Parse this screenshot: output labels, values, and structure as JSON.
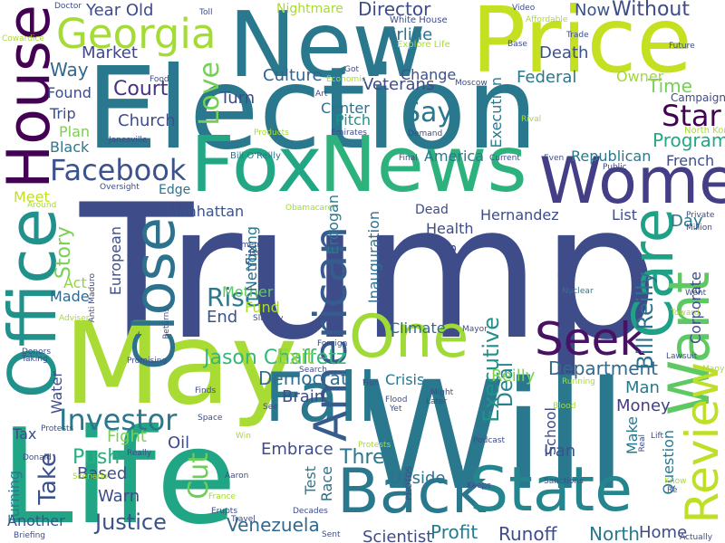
{
  "words": [
    {
      "text": "Trump",
      "color": "#3e4c8a",
      "rot": 0
    },
    {
      "text": "Election",
      "color": "#2a788e",
      "rot": 0
    },
    {
      "text": "Will",
      "color": "#2a788e",
      "rot": 0
    },
    {
      "text": "May",
      "color": "#a8db34",
      "rot": 0
    },
    {
      "text": "Life",
      "color": "#21a685",
      "rot": 0
    },
    {
      "text": "New",
      "color": "#2a788e",
      "rot": 0
    },
    {
      "text": "Price",
      "color": "#c4e021",
      "rot": 0
    },
    {
      "text": "Fox",
      "color": "#22a785",
      "rot": 0
    },
    {
      "text": "News",
      "color": "#2db27d",
      "rot": 0
    },
    {
      "text": "Women",
      "color": "#433e85",
      "rot": 0
    },
    {
      "text": "Back",
      "color": "#2a788e",
      "rot": 0
    },
    {
      "text": "State",
      "color": "#25858e",
      "rot": 0
    },
    {
      "text": "Fall",
      "color": "#2a788e",
      "rot": 0
    },
    {
      "text": "One",
      "color": "#a0da39",
      "rot": 0
    },
    {
      "text": "Seek",
      "color": "#471164",
      "rot": 0
    },
    {
      "text": "Office",
      "color": "#21918c",
      "rot": -90
    },
    {
      "text": "House",
      "color": "#440154",
      "rot": -90
    },
    {
      "text": "Close",
      "color": "#2c728e",
      "rot": -90
    },
    {
      "text": "Care",
      "color": "#1fa187",
      "rot": -90
    },
    {
      "text": "Want",
      "color": "#5ec962",
      "rot": -90
    },
    {
      "text": "American",
      "color": "#365c8d",
      "rot": -90
    },
    {
      "text": "Review",
      "color": "#bddf26",
      "rot": -90
    },
    {
      "text": "Georgia",
      "color": "#a5db36",
      "rot": 0
    },
    {
      "text": "Facebook",
      "color": "#3b528b",
      "rot": 0
    },
    {
      "text": "Investor",
      "color": "#2a788e",
      "rot": 0
    },
    {
      "text": "Star",
      "color": "#440154",
      "rot": 0
    },
    {
      "text": "Say",
      "color": "#2a788e",
      "rot": 0
    },
    {
      "text": "Love",
      "color": "#73d056",
      "rot": -90
    },
    {
      "text": "Rise",
      "color": "#2a788e",
      "rot": 0
    },
    {
      "text": "Jason Chaffetz",
      "color": "#35b779",
      "rot": 0
    },
    {
      "text": "Justice",
      "color": "#3b528b",
      "rot": 0
    },
    {
      "text": "Venezuela",
      "color": "#31688e",
      "rot": 0
    },
    {
      "text": "Deal",
      "color": "#25838e",
      "rot": -90
    },
    {
      "text": "Director",
      "color": "#3e4c8a",
      "rot": 0
    },
    {
      "text": "Airline",
      "color": "#2c728e",
      "rot": 0
    },
    {
      "text": "Court",
      "color": "#46327e",
      "rot": 0
    },
    {
      "text": "Church",
      "color": "#3e4c8a",
      "rot": 0
    },
    {
      "text": "Program",
      "color": "#22a884",
      "rot": 0
    },
    {
      "text": "Department",
      "color": "#31688e",
      "rot": 0
    },
    {
      "text": "Exit",
      "color": "#8fd744",
      "rot": 0
    },
    {
      "text": "Democrat",
      "color": "#2e6e8e",
      "rot": 0
    },
    {
      "text": "Three",
      "color": "#2a788e",
      "rot": 0
    },
    {
      "text": "Push",
      "color": "#29af7f",
      "rot": 0
    },
    {
      "text": "Money",
      "color": "#433e85",
      "rot": 0
    },
    {
      "text": "Take",
      "color": "#3b528b",
      "rot": -90
    },
    {
      "text": "Cut",
      "color": "#6ece58",
      "rot": -90
    },
    {
      "text": "Upside",
      "color": "#2c728e",
      "rot": 0
    },
    {
      "text": "Bill Reilly",
      "color": "#2c728e",
      "rot": -90
    },
    {
      "text": "Executive",
      "color": "#21918c",
      "rot": -90
    },
    {
      "text": "Culture",
      "color": "#33628d",
      "rot": 0
    },
    {
      "text": "Without",
      "color": "#3e4c8a",
      "rot": 0
    },
    {
      "text": "Year Old",
      "color": "#3e4c8a",
      "rot": 0
    },
    {
      "text": "Market",
      "color": "#404688",
      "rot": 0
    },
    {
      "text": "Way",
      "color": "#31688e",
      "rot": 0
    },
    {
      "text": "Death",
      "color": "#3b528b",
      "rot": 0
    },
    {
      "text": "Time",
      "color": "#75d054",
      "rot": 0
    },
    {
      "text": "Federal",
      "color": "#2a788e",
      "rot": 0
    },
    {
      "text": "Veterans",
      "color": "#3e4c8a",
      "rot": 0
    },
    {
      "text": "Change",
      "color": "#3b528b",
      "rot": 0
    },
    {
      "text": "Center",
      "color": "#2c728e",
      "rot": 0
    },
    {
      "text": "Pitch",
      "color": "#20928c",
      "rot": 0
    },
    {
      "text": "Now",
      "color": "#3b528b",
      "rot": 0
    },
    {
      "text": "Turn",
      "color": "#3e4c8a",
      "rot": 0
    },
    {
      "text": "Found",
      "color": "#3e4c8a",
      "rot": 0
    },
    {
      "text": "Trip",
      "color": "#3e4c8a",
      "rot": 0
    },
    {
      "text": "Plan",
      "color": "#7ad151",
      "rot": 0
    },
    {
      "text": "Black",
      "color": "#2a788e",
      "rot": 0
    },
    {
      "text": "Story",
      "color": "#7ad151",
      "rot": -90
    },
    {
      "text": "Act",
      "color": "#8fd744",
      "rot": 0
    },
    {
      "text": "Made",
      "color": "#31688e",
      "rot": 0
    },
    {
      "text": "Mother",
      "color": "#5ec962",
      "rot": 0
    },
    {
      "text": "Fund",
      "color": "#a8db34",
      "rot": 0
    },
    {
      "text": "End",
      "color": "#3b528b",
      "rot": 0
    },
    {
      "text": "European",
      "color": "#3e4c8a",
      "rot": -90
    },
    {
      "text": "Manhattan",
      "color": "#3b528b",
      "rot": 0
    },
    {
      "text": "Young",
      "color": "#2a788e",
      "rot": -90
    },
    {
      "text": "Netflix",
      "color": "#31688e",
      "rot": -90
    },
    {
      "text": "Edge",
      "color": "#2c728e",
      "rot": 0
    },
    {
      "text": "Republican",
      "color": "#2a788e",
      "rot": 0
    },
    {
      "text": "French",
      "color": "#3e4c8a",
      "rot": 0
    },
    {
      "text": "List",
      "color": "#3e4c8a",
      "rot": 0
    },
    {
      "text": "Day",
      "color": "#2a788e",
      "rot": 0
    },
    {
      "text": "Help",
      "color": "#3e4c8a",
      "rot": -90
    },
    {
      "text": "Hernandez",
      "color": "#3e4c8a",
      "rot": 0
    },
    {
      "text": "Health",
      "color": "#3e4c8a",
      "rot": 0
    },
    {
      "text": "America",
      "color": "#2a788e",
      "rot": 0
    },
    {
      "text": "Erdogan",
      "color": "#2a788e",
      "rot": -90
    },
    {
      "text": "Inauguration",
      "color": "#2c728e",
      "rot": -90
    },
    {
      "text": "Earnings",
      "color": "#3e4c8a",
      "rot": -90
    },
    {
      "text": "Climate",
      "color": "#31688e",
      "rot": 0
    },
    {
      "text": "Crisis",
      "color": "#2a788e",
      "rot": 0
    },
    {
      "text": "Reilly",
      "color": "#7ad151",
      "rot": 0
    },
    {
      "text": "Man",
      "color": "#2a788e",
      "rot": 0
    },
    {
      "text": "School",
      "color": "#3e4c8a",
      "rot": -90
    },
    {
      "text": "Make",
      "color": "#2a788e",
      "rot": -90
    },
    {
      "text": "Question",
      "color": "#2a788e",
      "rot": -90
    },
    {
      "text": "Corporate",
      "color": "#3e4c8a",
      "rot": -90
    },
    {
      "text": "Iran",
      "color": "#3b528b",
      "rot": 0
    },
    {
      "text": "Test",
      "color": "#2a788e",
      "rot": -90
    },
    {
      "text": "Race",
      "color": "#2c728e",
      "rot": -90
    },
    {
      "text": "Brain",
      "color": "#3e4c8a",
      "rot": 0
    },
    {
      "text": "Embrace",
      "color": "#3e4c8a",
      "rot": 0
    },
    {
      "text": "Oil",
      "color": "#3e4c8a",
      "rot": 0
    },
    {
      "text": "Fight",
      "color": "#7ad151",
      "rot": 0
    },
    {
      "text": "Tax",
      "color": "#3e4c8a",
      "rot": 0
    },
    {
      "text": "Based",
      "color": "#3e4c8a",
      "rot": 0
    },
    {
      "text": "Warn",
      "color": "#3e4c8a",
      "rot": 0
    },
    {
      "text": "Turning",
      "color": "#2a788e",
      "rot": -90
    },
    {
      "text": "Another",
      "color": "#3b528b",
      "rot": 0
    },
    {
      "text": "Runoff",
      "color": "#3e4c8a",
      "rot": 0
    },
    {
      "text": "Profit",
      "color": "#2a788e",
      "rot": 0
    },
    {
      "text": "Scientist",
      "color": "#3e4c8a",
      "rot": 0
    },
    {
      "text": "North",
      "color": "#2a788e",
      "rot": 0
    },
    {
      "text": "Home",
      "color": "#3e4c8a",
      "rot": 0
    },
    {
      "text": "Owner",
      "color": "#a0da39",
      "rot": 0
    },
    {
      "text": "Campaign",
      "color": "#3e4c8a",
      "rot": 0
    },
    {
      "text": "Execution",
      "color": "#2a788e",
      "rot": -90
    },
    {
      "text": "Meet",
      "color": "#c4e021",
      "rot": 0
    },
    {
      "text": "Dead",
      "color": "#3e4c8a",
      "rot": 0
    },
    {
      "text": "Water",
      "color": "#3e4c8a",
      "rot": -90
    },
    {
      "text": "Nightmare",
      "color": "#a8db34",
      "rot": 0
    },
    {
      "text": "White House",
      "color": "#3e4c8a",
      "rot": 0
    },
    {
      "text": "Explore Life",
      "color": "#a8db34",
      "rot": 0
    },
    {
      "text": "Oversight",
      "color": "#3e4c8a",
      "rot": 0
    },
    {
      "text": "Anti Maduro",
      "color": "#3e4c8a",
      "rot": -90
    },
    {
      "text": "Harassment",
      "color": "#3e4c8a",
      "rot": 0
    },
    {
      "text": "Obamacare",
      "color": "#a0da39",
      "rot": 0
    },
    {
      "text": "Bill O'Reilly",
      "color": "#2a788e",
      "rot": 0
    },
    {
      "text": "Janesville",
      "color": "#3e4c8a",
      "rot": 0
    },
    {
      "text": "Products",
      "color": "#a8db34",
      "rot": 0
    },
    {
      "text": "Emirates",
      "color": "#3e4c8a",
      "rot": 0
    },
    {
      "text": "North Korea",
      "color": "#a8db34",
      "rot": 0
    },
    {
      "text": "Promising",
      "color": "#3e4c8a",
      "rot": 0
    },
    {
      "text": "Adviser",
      "color": "#a8db34",
      "rot": 0
    },
    {
      "text": "Cowardice",
      "color": "#a8db34",
      "rot": 0
    },
    {
      "text": "Doctor",
      "color": "#3e4c8a",
      "rot": 0
    },
    {
      "text": "Toll",
      "color": "#3e4c8a",
      "rot": 0
    },
    {
      "text": "Video",
      "color": "#3e4c8a",
      "rot": 0
    },
    {
      "text": "Affordable",
      "color": "#a8db34",
      "rot": 0
    },
    {
      "text": "Trade",
      "color": "#3e4c8a",
      "rot": 0
    },
    {
      "text": "Base",
      "color": "#3e4c8a",
      "rot": 0
    },
    {
      "text": "Future",
      "color": "#3e4c8a",
      "rot": 0
    },
    {
      "text": "Food",
      "color": "#3e4c8a",
      "rot": 0
    },
    {
      "text": "Art",
      "color": "#3e4c8a",
      "rot": 0
    },
    {
      "text": "Got",
      "color": "#3e4c8a",
      "rot": 0
    },
    {
      "text": "Economic",
      "color": "#a8db34",
      "rot": 0
    },
    {
      "text": "Moscow",
      "color": "#3e4c8a",
      "rot": 0
    },
    {
      "text": "Rival",
      "color": "#a8db34",
      "rot": 0
    },
    {
      "text": "Demand",
      "color": "#3e4c8a",
      "rot": 0
    },
    {
      "text": "Final",
      "color": "#3e4c8a",
      "rot": 0
    },
    {
      "text": "Current",
      "color": "#3e4c8a",
      "rot": 0
    },
    {
      "text": "Even",
      "color": "#3e4c8a",
      "rot": 0
    },
    {
      "text": "Public",
      "color": "#3e4c8a",
      "rot": 0
    },
    {
      "text": "Around",
      "color": "#a8db34",
      "rot": 0
    },
    {
      "text": "Private",
      "color": "#3e4c8a",
      "rot": 0
    },
    {
      "text": "Million",
      "color": "#3e4c8a",
      "rot": 0
    },
    {
      "text": "Went",
      "color": "#3e4c8a",
      "rot": 0
    },
    {
      "text": "Nuclear",
      "color": "#2a788e",
      "rot": 0
    },
    {
      "text": "Issue",
      "color": "#3e4c8a",
      "rot": 0
    },
    {
      "text": "Returns",
      "color": "#3e4c8a",
      "rot": -90
    },
    {
      "text": "Slavery",
      "color": "#3e4c8a",
      "rot": 0
    },
    {
      "text": "Foreign",
      "color": "#3e4c8a",
      "rot": 0
    },
    {
      "text": "Mayor",
      "color": "#3e4c8a",
      "rot": 0
    },
    {
      "text": "Toward",
      "color": "#a8db34",
      "rot": 0
    },
    {
      "text": "Search",
      "color": "#3e4c8a",
      "rot": 0
    },
    {
      "text": "Donors",
      "color": "#3e4c8a",
      "rot": 0
    },
    {
      "text": "Taking",
      "color": "#3e4c8a",
      "rot": 0
    },
    {
      "text": "Lawsuit",
      "color": "#3e4c8a",
      "rot": 0
    },
    {
      "text": "Many",
      "color": "#a8db34",
      "rot": 0
    },
    {
      "text": "Running",
      "color": "#a8db34",
      "rot": 0
    },
    {
      "text": "Might",
      "color": "#3e4c8a",
      "rot": 0
    },
    {
      "text": "Later",
      "color": "#3e4c8a",
      "rot": 0
    },
    {
      "text": "Finds",
      "color": "#3e4c8a",
      "rot": 0
    },
    {
      "text": "Film",
      "color": "#3e4c8a",
      "rot": 0
    },
    {
      "text": "Space",
      "color": "#3e4c8a",
      "rot": 0
    },
    {
      "text": "See",
      "color": "#3e4c8a",
      "rot": 0
    },
    {
      "text": "Yet",
      "color": "#3e4c8a",
      "rot": 0
    },
    {
      "text": "Flood",
      "color": "#3e4c8a",
      "rot": 0
    },
    {
      "text": "Blood",
      "color": "#a8db34",
      "rot": 0
    },
    {
      "text": "Lift",
      "color": "#3e4c8a",
      "rot": 0
    },
    {
      "text": "Real",
      "color": "#3e4c8a",
      "rot": -90
    },
    {
      "text": "Protests",
      "color": "#3e4c8a",
      "rot": 0
    },
    {
      "text": "Win",
      "color": "#a8db34",
      "rot": 0
    },
    {
      "text": "Protests",
      "color": "#a8db34",
      "rot": 0
    },
    {
      "text": "PHOTOS",
      "color": "#3e4c8a",
      "rot": -90
    },
    {
      "text": "Podcast",
      "color": "#3e4c8a",
      "rot": 0
    },
    {
      "text": "Scenario",
      "color": "#a8db34",
      "rot": 0
    },
    {
      "text": "Donald",
      "color": "#3e4c8a",
      "rot": 0
    },
    {
      "text": "Really",
      "color": "#3e4c8a",
      "rot": 0
    },
    {
      "text": "Aaron",
      "color": "#3e4c8a",
      "rot": 0
    },
    {
      "text": "Keeps",
      "color": "#3e4c8a",
      "rot": 0
    },
    {
      "text": "Sanctions",
      "color": "#3e4c8a",
      "rot": 0
    },
    {
      "text": "Know",
      "color": "#a8db34",
      "rot": 0
    },
    {
      "text": "Re",
      "color": "#3e4c8a",
      "rot": 0
    },
    {
      "text": "France",
      "color": "#a8db34",
      "rot": 0
    },
    {
      "text": "Erupts",
      "color": "#3e4c8a",
      "rot": 0
    },
    {
      "text": "Travel",
      "color": "#3e4c8a",
      "rot": 0
    },
    {
      "text": "Decades",
      "color": "#3e4c8a",
      "rot": 0
    },
    {
      "text": "Sent",
      "color": "#3e4c8a",
      "rot": 0
    },
    {
      "text": "Briefing",
      "color": "#3e4c8a",
      "rot": 0
    },
    {
      "text": "Actually",
      "color": "#3e4c8a",
      "rot": 0
    }
  ]
}
